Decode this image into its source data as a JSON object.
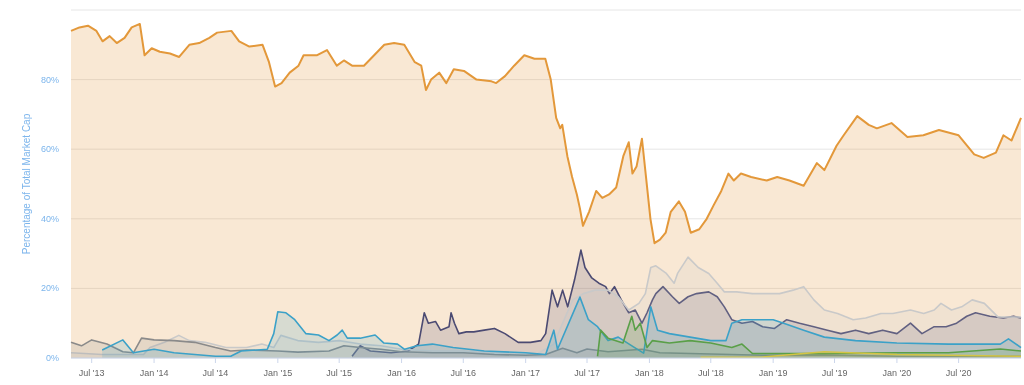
{
  "chart_data": {
    "type": "area",
    "ylabel": "Percentage of Total Market Cap",
    "xlim": [
      "2013-05-01",
      "2021-01-01"
    ],
    "ylim": [
      0,
      100
    ],
    "yticks": [
      {
        "value": 0,
        "label": "0%"
      },
      {
        "value": 20,
        "label": "20%"
      },
      {
        "value": 40,
        "label": "40%"
      },
      {
        "value": 60,
        "label": "60%"
      },
      {
        "value": 80,
        "label": "80%"
      },
      {
        "value": 100,
        "label": null
      }
    ],
    "xticks": [
      {
        "value": "2013-07-01",
        "label": "Jul '13"
      },
      {
        "value": "2014-01-01",
        "label": "Jan '14"
      },
      {
        "value": "2014-07-01",
        "label": "Jul '14"
      },
      {
        "value": "2015-01-01",
        "label": "Jan '15"
      },
      {
        "value": "2015-07-01",
        "label": "Jul '15"
      },
      {
        "value": "2016-01-01",
        "label": "Jan '16"
      },
      {
        "value": "2016-07-01",
        "label": "Jul '16"
      },
      {
        "value": "2017-01-01",
        "label": "Jan '17"
      },
      {
        "value": "2017-07-01",
        "label": "Jul '17"
      },
      {
        "value": "2018-01-01",
        "label": "Jan '18"
      },
      {
        "value": "2018-07-01",
        "label": "Jul '18"
      },
      {
        "value": "2019-01-01",
        "label": "Jan '19"
      },
      {
        "value": "2019-07-01",
        "label": "Jul '19"
      },
      {
        "value": "2020-01-01",
        "label": "Jan '20"
      },
      {
        "value": "2020-07-01",
        "label": "Jul '20"
      }
    ],
    "grid": "y",
    "series": [
      {
        "color": "#e3983a",
        "x": [
          "2013-05-01",
          "2013-05-26",
          "2013-06-20",
          "2013-07-15",
          "2013-08-02",
          "2013-08-23",
          "2013-09-13",
          "2013-10-06",
          "2013-10-27",
          "2013-11-20",
          "2013-12-04",
          "2013-12-25",
          "2014-01-18",
          "2014-02-17",
          "2014-03-16",
          "2014-04-15",
          "2014-05-14",
          "2014-06-13",
          "2014-07-06",
          "2014-08-17",
          "2014-09-09",
          "2014-10-09",
          "2014-11-17",
          "2014-12-06",
          "2014-12-24",
          "2015-01-12",
          "2015-02-05",
          "2015-03-03",
          "2015-03-18",
          "2015-04-27",
          "2015-05-26",
          "2015-06-24",
          "2015-07-15",
          "2015-08-08",
          "2015-09-12",
          "2015-10-12",
          "2015-11-11",
          "2015-12-10",
          "2016-01-09",
          "2016-02-09",
          "2016-02-28",
          "2016-03-13",
          "2016-03-28",
          "2016-04-21",
          "2016-05-12",
          "2016-06-03",
          "2016-07-03",
          "2016-08-09",
          "2016-09-22",
          "2016-10-06",
          "2016-11-01",
          "2016-11-28",
          "2016-12-28",
          "2017-01-27",
          "2017-02-28",
          "2017-03-16",
          "2017-04-01",
          "2017-04-13",
          "2017-04-19",
          "2017-05-04",
          "2017-05-18",
          "2017-06-01",
          "2017-06-10",
          "2017-06-19",
          "2017-07-07",
          "2017-07-28",
          "2017-08-15",
          "2017-09-04",
          "2017-09-25",
          "2017-10-16",
          "2017-11-01",
          "2017-11-12",
          "2017-11-24",
          "2017-12-10",
          "2017-12-22",
          "2018-01-04",
          "2018-01-16",
          "2018-02-01",
          "2018-02-18",
          "2018-03-05",
          "2018-03-29",
          "2018-04-16",
          "2018-05-03",
          "2018-05-28",
          "2018-06-19",
          "2018-07-10",
          "2018-08-01",
          "2018-08-22",
          "2018-09-07",
          "2018-09-28",
          "2018-10-28",
          "2018-12-13",
          "2019-01-13",
          "2019-02-18",
          "2019-04-01",
          "2019-05-10",
          "2019-06-01",
          "2019-07-07",
          "2019-07-28",
          "2019-09-06",
          "2019-10-10",
          "2019-11-03",
          "2019-12-16",
          "2020-02-01",
          "2020-03-19",
          "2020-05-04",
          "2020-07-01",
          "2020-08-16",
          "2020-09-13",
          "2020-10-19",
          "2020-11-10",
          "2020-12-04",
          "2021-01-01"
        ],
        "values": [
          94,
          95,
          95.5,
          94,
          91,
          92.5,
          90.5,
          92,
          95,
          96,
          87,
          89,
          88,
          87.5,
          86.5,
          90,
          90.5,
          92,
          93.5,
          94,
          91,
          89.5,
          90,
          85,
          78,
          79,
          82,
          84,
          87,
          87,
          88.5,
          84,
          85.5,
          84,
          84,
          87,
          90,
          90.5,
          90,
          85,
          84,
          77,
          80,
          82,
          79,
          83,
          82.5,
          80,
          79.5,
          79,
          81,
          84,
          87,
          86,
          86,
          80,
          69,
          66,
          67,
          58,
          52,
          47,
          43,
          38,
          42,
          48,
          46,
          47,
          49,
          58,
          62,
          53,
          55,
          63,
          52,
          40,
          33,
          34,
          36,
          42,
          45,
          42,
          36,
          37,
          40,
          44,
          48,
          53,
          51,
          53,
          52,
          51,
          52,
          51,
          49.5,
          56,
          54,
          61,
          64,
          69.5,
          67,
          66,
          67.5,
          63.5,
          64,
          65.5,
          64,
          58.5,
          57.5,
          59,
          64,
          62.5,
          69
        ]
      },
      {
        "color": "#4b4a72",
        "x": [
          "2015-08-08",
          "2015-09-01",
          "2015-10-01",
          "2015-12-01",
          "2016-01-20",
          "2016-02-20",
          "2016-03-08",
          "2016-03-20",
          "2016-04-10",
          "2016-04-25",
          "2016-05-20",
          "2016-05-26",
          "2016-06-05",
          "2016-06-18",
          "2016-07-10",
          "2016-08-01",
          "2016-09-01",
          "2016-10-01",
          "2016-11-01",
          "2016-12-10",
          "2017-01-15",
          "2017-02-15",
          "2017-03-01",
          "2017-03-20",
          "2017-04-05",
          "2017-04-20",
          "2017-05-05",
          "2017-05-25",
          "2017-06-13",
          "2017-06-25",
          "2017-07-15",
          "2017-08-05",
          "2017-08-25",
          "2017-09-05",
          "2017-09-20",
          "2017-10-10",
          "2017-11-01",
          "2017-11-20",
          "2017-12-10",
          "2017-12-25",
          "2018-01-10",
          "2018-01-20",
          "2018-02-10",
          "2018-03-10",
          "2018-03-30",
          "2018-04-25",
          "2018-05-20",
          "2018-06-25",
          "2018-07-20",
          "2018-08-10",
          "2018-09-01",
          "2018-10-01",
          "2018-11-01",
          "2018-12-01",
          "2019-01-05",
          "2019-02-10",
          "2019-03-20",
          "2019-05-01",
          "2019-06-10",
          "2019-07-20",
          "2019-09-01",
          "2019-10-10",
          "2019-11-20",
          "2020-01-01",
          "2020-02-10",
          "2020-03-15",
          "2020-04-20",
          "2020-05-25",
          "2020-06-25",
          "2020-07-25",
          "2020-08-20",
          "2020-10-01",
          "2020-11-10",
          "2020-12-10",
          "2021-01-01"
        ],
        "values": [
          0.5,
          3.5,
          2,
          1.5,
          2,
          4,
          13,
          10,
          10.5,
          8,
          9,
          13,
          10,
          7,
          7.5,
          7.5,
          8,
          8.5,
          7,
          4.5,
          4.5,
          5,
          7,
          19.5,
          14.7,
          19.5,
          14.7,
          22.4,
          31,
          26,
          23,
          21.5,
          20.5,
          18.5,
          20.5,
          16.7,
          13,
          13.8,
          10,
          13,
          16.7,
          18.5,
          20.5,
          17.6,
          15.7,
          17.6,
          18.5,
          19,
          17.6,
          14.7,
          11,
          10,
          10.5,
          9,
          8.5,
          11,
          10,
          9,
          8,
          7,
          8,
          7,
          8,
          7,
          10,
          7,
          9,
          9,
          10,
          12,
          13,
          12,
          11.5,
          12,
          11.5
        ]
      },
      {
        "color": "#c9c9c9",
        "x": [
          "2013-05-01",
          "2013-08-01",
          "2013-12-01",
          "2013-12-20",
          "2014-02-01",
          "2014-03-15",
          "2014-04-15",
          "2014-06-01",
          "2014-08-01",
          "2014-10-01",
          "2014-11-15",
          "2014-12-20",
          "2015-01-10",
          "2015-03-01",
          "2015-05-01",
          "2015-07-01",
          "2015-09-01",
          "2015-11-01",
          "2016-01-01",
          "2016-04-01",
          "2016-07-01",
          "2016-09-01",
          "2016-12-01",
          "2017-02-01",
          "2017-03-25",
          "2017-04-20",
          "2017-05-20",
          "2017-06-20",
          "2017-07-25",
          "2017-09-01",
          "2017-10-01",
          "2017-11-01",
          "2017-12-01",
          "2017-12-20",
          "2018-01-05",
          "2018-01-20",
          "2018-02-20",
          "2018-03-15",
          "2018-03-25",
          "2018-04-25",
          "2018-05-25",
          "2018-06-25",
          "2018-07-20",
          "2018-08-10",
          "2018-09-15",
          "2018-11-01",
          "2018-12-15",
          "2019-01-20",
          "2019-03-01",
          "2019-04-01",
          "2019-05-01",
          "2019-06-01",
          "2019-07-10",
          "2019-08-25",
          "2019-10-01",
          "2019-11-15",
          "2019-12-20",
          "2020-02-10",
          "2020-03-20",
          "2020-04-20",
          "2020-05-10",
          "2020-06-10",
          "2020-07-10",
          "2020-08-10",
          "2020-09-15",
          "2020-10-25",
          "2021-01-01"
        ],
        "values": [
          1.5,
          1,
          1,
          3,
          4.5,
          6.5,
          5,
          4.5,
          3,
          3,
          4,
          3,
          6.5,
          5,
          4.5,
          5,
          4,
          3.5,
          2.5,
          2,
          2,
          1.5,
          1,
          1,
          4,
          10,
          16.7,
          18.5,
          19.5,
          19.5,
          17.6,
          13.8,
          15.7,
          18.5,
          26,
          26.5,
          24.3,
          21.5,
          24.3,
          29,
          26,
          24.3,
          21.5,
          19,
          19,
          18.5,
          18.5,
          18.5,
          19.5,
          20.5,
          16.7,
          13.8,
          12.8,
          11,
          11.5,
          12.8,
          12.8,
          13.8,
          12.8,
          13.8,
          15.7,
          13.8,
          14.7,
          16.7,
          15.7,
          11.8,
          11.8
        ]
      },
      {
        "color": "#8a8a8a",
        "x": [
          "2013-05-01",
          "2013-06-01",
          "2013-07-01",
          "2013-08-15",
          "2013-10-01",
          "2013-11-01",
          "2013-11-25",
          "2014-01-01",
          "2014-03-01",
          "2014-05-01",
          "2014-07-01",
          "2014-08-15",
          "2014-10-01",
          "2015-01-01",
          "2015-03-01",
          "2015-06-01",
          "2015-07-15",
          "2015-09-01",
          "2015-11-01",
          "2016-01-01",
          "2016-04-01",
          "2016-07-01",
          "2016-10-01",
          "2017-01-01",
          "2017-03-01",
          "2017-04-20",
          "2017-06-01",
          "2017-07-01",
          "2017-09-01",
          "2017-12-10",
          "2018-02-01",
          "2018-06-01",
          "2018-12-01",
          "2019-06-01",
          "2020-01-01",
          "2021-01-01"
        ],
        "values": [
          4.5,
          3.5,
          5.2,
          4,
          1.8,
          1.5,
          5.7,
          5.2,
          5,
          4.5,
          3,
          2,
          2.3,
          2,
          1.7,
          2,
          3.5,
          3,
          2.5,
          1.8,
          1.5,
          1.5,
          1,
          0.8,
          1,
          2.8,
          1.5,
          2.6,
          1.8,
          2.5,
          1.5,
          1.2,
          0.8,
          0.9,
          0.5,
          0.5
        ]
      },
      {
        "color": "#3ba1c8",
        "x": [
          "2013-08-01",
          "2013-10-01",
          "2013-11-01",
          "2014-01-01",
          "2014-03-01",
          "2014-07-01",
          "2014-08-15",
          "2014-09-15",
          "2014-12-01",
          "2014-12-20",
          "2015-01-01",
          "2015-01-25",
          "2015-02-20",
          "2015-03-25",
          "2015-05-01",
          "2015-06-01",
          "2015-06-25",
          "2015-07-10",
          "2015-07-25",
          "2015-09-01",
          "2015-10-15",
          "2015-11-10",
          "2015-12-20",
          "2016-01-10",
          "2016-02-15",
          "2016-04-01",
          "2016-06-01",
          "2016-09-01",
          "2017-01-01",
          "2017-03-01",
          "2017-03-25",
          "2017-04-05",
          "2017-06-10",
          "2017-07-05",
          "2017-08-01",
          "2017-09-01",
          "2017-10-01",
          "2017-11-15",
          "2017-12-15",
          "2018-01-05",
          "2018-01-25",
          "2018-03-01",
          "2018-05-01",
          "2018-07-01",
          "2018-08-15",
          "2018-09-01",
          "2018-10-01",
          "2018-11-15",
          "2019-01-01",
          "2019-02-01",
          "2019-04-01",
          "2019-06-01",
          "2019-09-01",
          "2020-01-01",
          "2020-06-01",
          "2020-11-01",
          "2020-11-25",
          "2021-01-01"
        ],
        "values": [
          2.3,
          5.2,
          1.5,
          2.5,
          1.5,
          0.5,
          0.5,
          2,
          2.5,
          7,
          13.3,
          13,
          11,
          7,
          6.6,
          5,
          6.6,
          8,
          5.7,
          5.7,
          6.6,
          4.3,
          4,
          2.5,
          3.5,
          4,
          3,
          2,
          1.5,
          1,
          8,
          2.5,
          17.5,
          11,
          9,
          5,
          6,
          3.2,
          1.4,
          14.7,
          8,
          7,
          6,
          5,
          5,
          10,
          11,
          11,
          11,
          10,
          8,
          6,
          5,
          4.3,
          4,
          4,
          5.5,
          3
        ]
      },
      {
        "color": "#5a9f48",
        "x": [
          "2017-08-01",
          "2017-08-10",
          "2017-09-01",
          "2017-10-15",
          "2017-11-10",
          "2017-11-20",
          "2017-12-05",
          "2017-12-25",
          "2018-01-10",
          "2018-03-01",
          "2018-05-01",
          "2018-07-01",
          "2018-09-01",
          "2018-10-01",
          "2018-11-01",
          "2019-06-01",
          "2020-01-01",
          "2020-06-01",
          "2020-11-01",
          "2021-01-01"
        ],
        "values": [
          0.5,
          8,
          5.7,
          4.3,
          12,
          8,
          10,
          3,
          5,
          4.3,
          5,
          4.3,
          3,
          4,
          1.3,
          1.3,
          1.5,
          1.5,
          2.6,
          2
        ]
      },
      {
        "color": "#d4c445",
        "x": [
          "2018-06-01",
          "2018-12-01",
          "2019-06-01",
          "2020-01-01",
          "2021-01-01"
        ],
        "values": [
          0.2,
          0.3,
          1.8,
          1,
          0.5
        ]
      }
    ]
  }
}
